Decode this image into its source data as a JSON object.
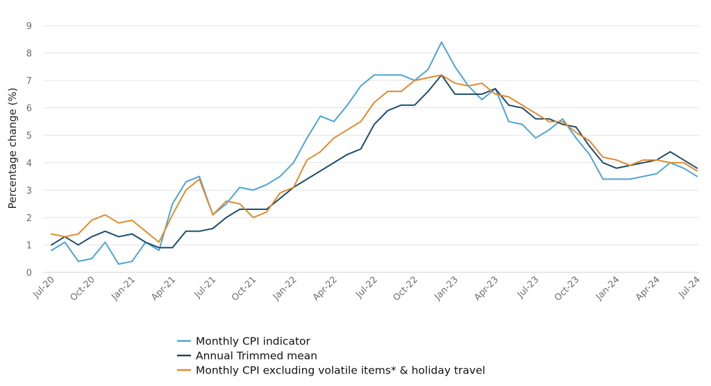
{
  "chart_data": {
    "type": "line",
    "title": "",
    "xlabel": "",
    "ylabel": "Percentage change (%)",
    "ylim": [
      0,
      9
    ],
    "yticks": [
      "0",
      "1",
      "2",
      "3",
      "4",
      "5",
      "6",
      "7",
      "8",
      "9"
    ],
    "grid": "horizontal",
    "legend_position": "bottom",
    "categories": [
      "Jul-20",
      "Aug-20",
      "Sep-20",
      "Oct-20",
      "Nov-20",
      "Dec-20",
      "Jan-21",
      "Feb-21",
      "Mar-21",
      "Apr-21",
      "May-21",
      "Jun-21",
      "Jul-21",
      "Aug-21",
      "Sep-21",
      "Oct-21",
      "Nov-21",
      "Dec-21",
      "Jan-22",
      "Feb-22",
      "Mar-22",
      "Apr-22",
      "May-22",
      "Jun-22",
      "Jul-22",
      "Aug-22",
      "Sep-22",
      "Oct-22",
      "Nov-22",
      "Dec-22",
      "Jan-23",
      "Feb-23",
      "Mar-23",
      "Apr-23",
      "May-23",
      "Jun-23",
      "Jul-23",
      "Aug-23",
      "Sep-23",
      "Oct-23",
      "Nov-23",
      "Dec-23",
      "Jan-24",
      "Feb-24",
      "Mar-24",
      "Apr-24",
      "May-24",
      "Jun-24",
      "Jul-24"
    ],
    "tick_labels": [
      "Jul-20",
      "Oct-20",
      "Jan-21",
      "Apr-21",
      "Jul-21",
      "Oct-21",
      "Jan-22",
      "Apr-22",
      "Jul-22",
      "Oct-22",
      "Jan-23",
      "Apr-23",
      "Jul-23",
      "Oct-23",
      "Jan-24",
      "Apr-24",
      "Jul-24"
    ],
    "series": [
      {
        "name": "Monthly CPI indicator",
        "color": "#4aa3d4",
        "values": [
          0.8,
          1.1,
          0.4,
          0.5,
          1.1,
          0.3,
          0.4,
          1.1,
          0.8,
          2.5,
          3.3,
          3.5,
          2.1,
          2.5,
          3.1,
          3.0,
          3.2,
          3.5,
          4.0,
          4.9,
          5.7,
          5.5,
          6.1,
          6.8,
          7.2,
          7.2,
          7.2,
          7.0,
          7.4,
          8.4,
          7.5,
          6.8,
          6.3,
          6.7,
          5.5,
          5.4,
          4.9,
          5.2,
          5.6,
          4.9,
          4.3,
          3.4,
          3.4,
          3.4,
          3.5,
          3.6,
          4.0,
          3.8,
          3.5
        ]
      },
      {
        "name": "Annual Trimmed mean",
        "color": "#1b4a6b",
        "values": [
          1.0,
          1.3,
          1.0,
          1.3,
          1.5,
          1.3,
          1.4,
          1.1,
          0.9,
          0.9,
          1.5,
          1.5,
          1.6,
          2.0,
          2.3,
          2.3,
          2.3,
          2.7,
          3.1,
          3.4,
          3.7,
          4.0,
          4.3,
          4.5,
          5.4,
          5.9,
          6.1,
          6.1,
          6.6,
          7.2,
          6.5,
          6.5,
          6.5,
          6.7,
          6.1,
          6.0,
          5.6,
          5.6,
          5.4,
          5.3,
          4.6,
          4.0,
          3.8,
          3.9,
          4.0,
          4.1,
          4.4,
          4.1,
          3.8
        ]
      },
      {
        "name": "Monthly CPI excluding volatile items* & holiday travel",
        "color": "#e08a2a",
        "values": [
          1.4,
          1.3,
          1.4,
          1.9,
          2.1,
          1.8,
          1.9,
          1.5,
          1.1,
          2.1,
          3.0,
          3.4,
          2.1,
          2.6,
          2.5,
          2.0,
          2.2,
          2.9,
          3.1,
          4.1,
          4.4,
          4.9,
          5.2,
          5.5,
          6.2,
          6.6,
          6.6,
          7.0,
          7.1,
          7.2,
          6.9,
          6.8,
          6.9,
          6.5,
          6.4,
          6.1,
          5.8,
          5.5,
          5.5,
          5.1,
          4.8,
          4.2,
          4.1,
          3.9,
          4.1,
          4.1,
          4.0,
          4.0,
          3.7
        ]
      }
    ]
  },
  "legend": {
    "items": [
      {
        "label": "Monthly CPI indicator",
        "color": "#4aa3d4"
      },
      {
        "label": "Annual Trimmed mean",
        "color": "#1b4a6b"
      },
      {
        "label": "Monthly CPI excluding volatile items* & holiday travel",
        "color": "#e08a2a"
      }
    ]
  }
}
